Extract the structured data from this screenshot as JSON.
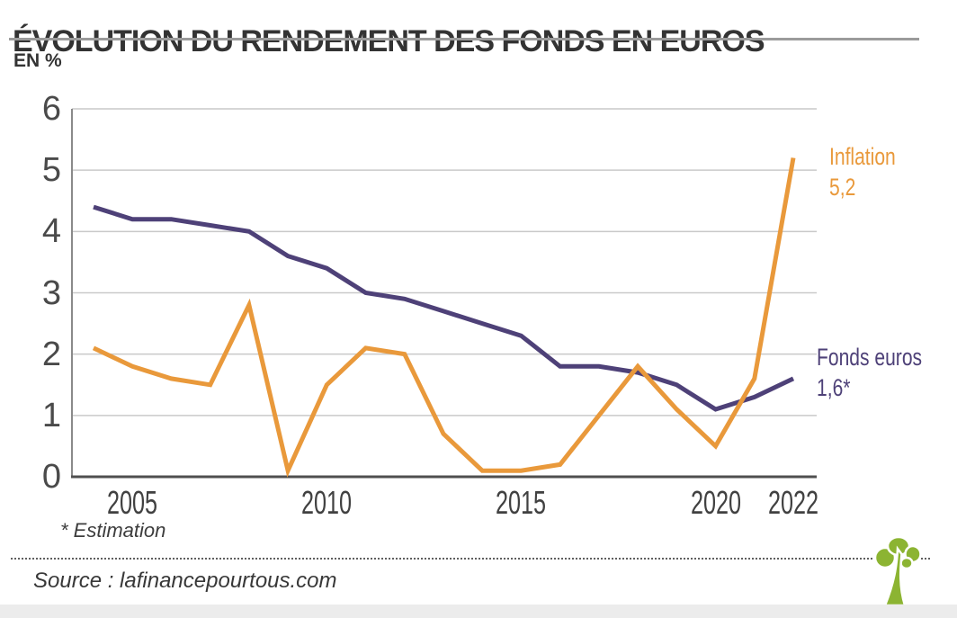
{
  "header": {
    "title": "ÉVOLUTION DU RENDEMENT DES FONDS EN EUROS",
    "unit_label": "EN %"
  },
  "chart_data": {
    "type": "line",
    "title": "ÉVOLUTION DU RENDEMENT DES FONDS EN EUROS",
    "ylabel": "EN %",
    "xlabel": "",
    "grid": "horizontal",
    "legend_position": "right-end-labels",
    "ylim": [
      0,
      6
    ],
    "yticks": [
      0,
      1,
      2,
      3,
      4,
      5,
      6
    ],
    "xticks": [
      2005,
      2010,
      2015,
      2020,
      2022
    ],
    "x": [
      2004,
      2005,
      2006,
      2007,
      2008,
      2009,
      2010,
      2011,
      2012,
      2013,
      2014,
      2015,
      2016,
      2017,
      2018,
      2019,
      2020,
      2021,
      2022
    ],
    "series": [
      {
        "id": "fonds-euros",
        "name": "Fonds euros",
        "color": "#4E4178",
        "values": [
          4.4,
          4.2,
          4.2,
          4.1,
          4.0,
          3.6,
          3.4,
          3.0,
          2.9,
          2.7,
          2.5,
          2.3,
          1.8,
          1.8,
          1.7,
          1.5,
          1.1,
          1.3,
          1.6
        ],
        "end_label": {
          "title": "Fonds euros",
          "value": "1,6*"
        }
      },
      {
        "id": "inflation",
        "name": "Inflation",
        "color": "#E9993B",
        "values": [
          2.1,
          1.8,
          1.6,
          1.5,
          2.8,
          0.1,
          1.5,
          2.1,
          2.0,
          0.7,
          0.1,
          0.1,
          0.2,
          1.0,
          1.8,
          1.1,
          0.5,
          1.6,
          5.2
        ],
        "end_label": {
          "title": "Inflation",
          "value": "5,2"
        }
      }
    ]
  },
  "footnote": "* Estimation",
  "source": "Source : lafinancepourtous.com",
  "logo": "tree-icon",
  "colors": {
    "grid": "#C9C9C9",
    "axis_left": "#8A8A8A",
    "axis_bottom": "#4F4F4F",
    "logo_green": "#8CB432"
  }
}
